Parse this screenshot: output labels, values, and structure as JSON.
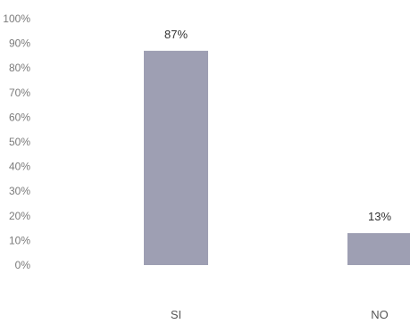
{
  "chart_data": {
    "type": "bar",
    "title": "",
    "xlabel": "",
    "ylabel": "",
    "categories": [
      "SI",
      "NO"
    ],
    "values": [
      87,
      13
    ],
    "data_labels": [
      "87%",
      "13%"
    ],
    "ylim": [
      0,
      100
    ],
    "yticks": [
      "0%",
      "10%",
      "20%",
      "30%",
      "40%",
      "50%",
      "60%",
      "70%",
      "80%",
      "90%",
      "100%"
    ],
    "grid": false,
    "legend": "none",
    "bar_color": "#9e9fb3"
  }
}
